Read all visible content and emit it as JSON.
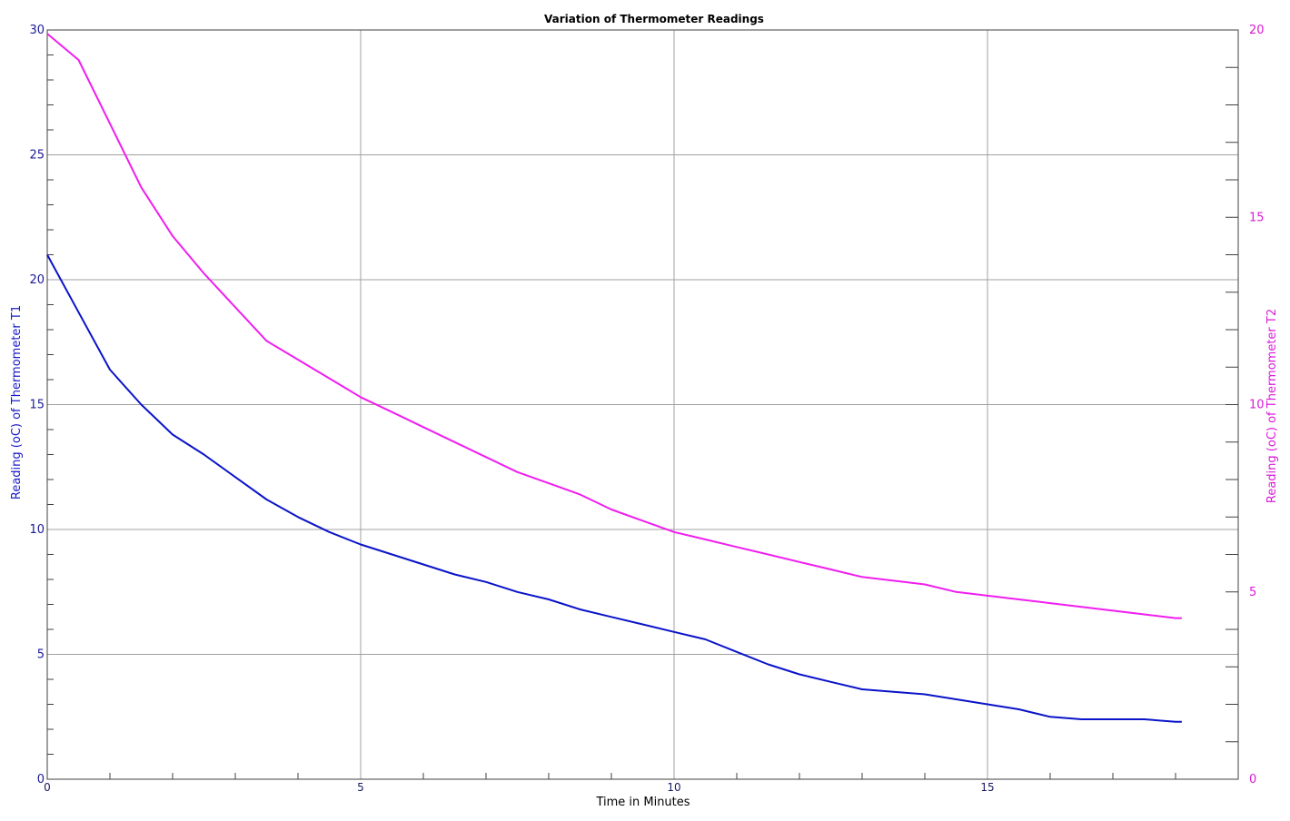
{
  "chart_data": {
    "type": "line",
    "title": "Variation of Thermometer Readings",
    "xlabel": "Time in Minutes",
    "ylabel_left": "Reading (oC) of Thermometer T1",
    "ylabel_right": "Reading (oC) of Thermometer T2",
    "xlim": [
      0,
      19
    ],
    "ylim_left": [
      0,
      30
    ],
    "ylim_right": [
      0,
      20
    ],
    "x_ticks": [
      "0",
      "5",
      "10",
      "15"
    ],
    "y_ticks_left": [
      "0",
      "5",
      "10",
      "15",
      "20",
      "25",
      "30"
    ],
    "y_ticks_right": [
      "0",
      "5",
      "10",
      "15",
      "20"
    ],
    "grid": true,
    "colors": {
      "T1": "#0a14c8",
      "T2": "#f01ef0",
      "grid": "#a0a0a0",
      "axis": "#404040"
    },
    "series": [
      {
        "key": "T1",
        "axis": "left",
        "x": [
          0,
          0.5,
          1.0,
          1.5,
          2.0,
          2.5,
          3.0,
          3.5,
          4.0,
          4.5,
          5.0,
          5.5,
          6.0,
          6.5,
          7.0,
          7.5,
          8.0,
          8.5,
          9.0,
          9.5,
          10.0,
          10.5,
          11.0,
          11.5,
          12.0,
          12.5,
          13.0,
          13.5,
          14.0,
          14.5,
          15.0,
          15.5,
          16.0,
          16.5,
          17.0,
          17.5,
          18.0,
          18.1
        ],
        "values": [
          21.0,
          18.7,
          16.4,
          15.0,
          13.8,
          13.0,
          12.1,
          11.2,
          10.5,
          9.9,
          9.4,
          9.0,
          8.6,
          8.2,
          7.9,
          7.5,
          7.2,
          6.8,
          6.5,
          6.2,
          5.9,
          5.6,
          5.1,
          4.6,
          4.2,
          3.9,
          3.6,
          3.5,
          3.4,
          3.2,
          3.0,
          2.8,
          2.5,
          2.4,
          2.4,
          2.4,
          2.3,
          2.3
        ]
      },
      {
        "key": "T2",
        "axis": "right",
        "x": [
          0,
          0.5,
          1.0,
          1.5,
          2.0,
          2.5,
          3.0,
          3.5,
          4.0,
          4.5,
          5.0,
          5.5,
          6.0,
          6.5,
          7.0,
          7.5,
          8.0,
          8.5,
          9.0,
          9.5,
          10.0,
          10.5,
          11.0,
          11.5,
          12.0,
          12.5,
          13.0,
          13.5,
          14.0,
          14.5,
          15.0,
          15.5,
          16.0,
          16.5,
          17.0,
          17.5,
          18.0,
          18.1
        ],
        "values": [
          19.9,
          19.2,
          17.5,
          15.8,
          14.5,
          13.5,
          12.6,
          11.7,
          11.2,
          10.7,
          10.2,
          9.8,
          9.4,
          9.0,
          8.6,
          8.2,
          7.9,
          7.6,
          7.2,
          6.9,
          6.6,
          6.4,
          6.2,
          6.0,
          5.8,
          5.6,
          5.4,
          5.3,
          5.2,
          5.0,
          4.9,
          4.8,
          4.7,
          4.6,
          4.5,
          4.4,
          4.3,
          4.3
        ]
      }
    ]
  }
}
